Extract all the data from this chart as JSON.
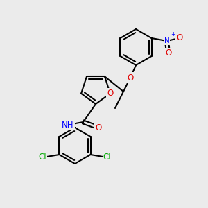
{
  "bg_color": "#ebebeb",
  "bond_color": "#000000",
  "bond_lw": 1.5,
  "atom_colors": {
    "O": "#e00000",
    "N": "#0000ff",
    "Cl": "#00aa00",
    "H": "#404040",
    "C": "#000000"
  },
  "font_size": 8.5,
  "font_size_small": 7.5
}
